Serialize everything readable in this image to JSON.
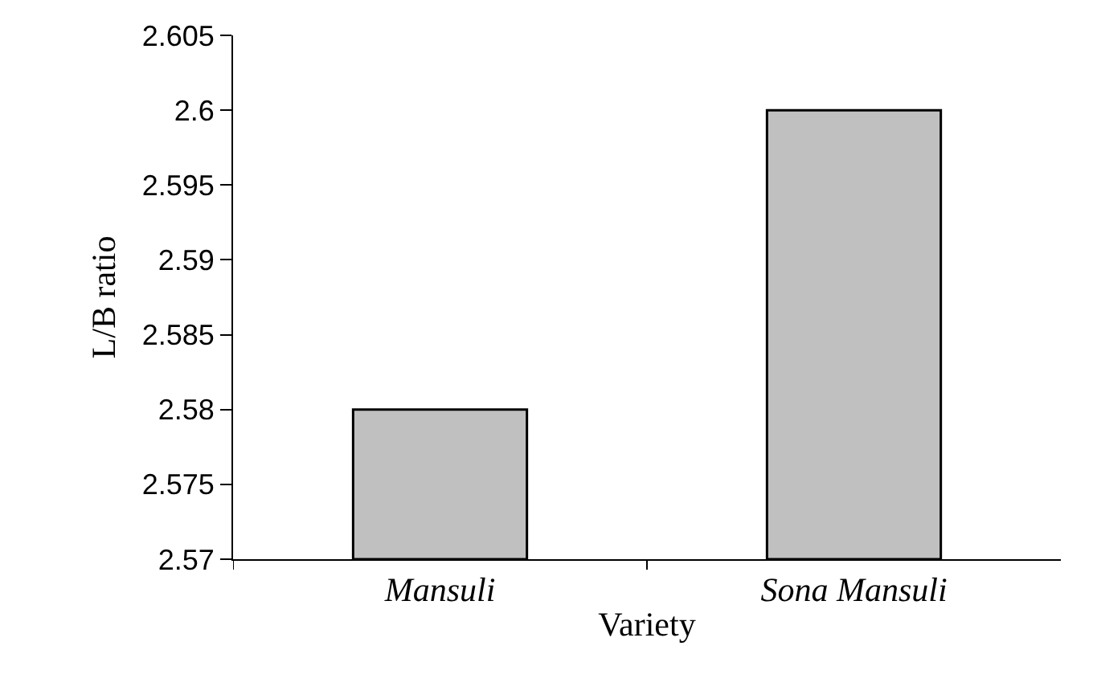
{
  "chart_data": {
    "type": "bar",
    "categories": [
      "Mansuli",
      "Sona Mansuli"
    ],
    "values": [
      2.58,
      2.6
    ],
    "color": "#c0c0c0",
    "xlabel": "Variety",
    "ylabel": "L/B ratio",
    "ylim": [
      2.57,
      2.605
    ],
    "yticks": [
      2.57,
      2.575,
      2.58,
      2.585,
      2.59,
      2.595,
      2.6,
      2.605
    ],
    "tick_labels": "xy"
  }
}
